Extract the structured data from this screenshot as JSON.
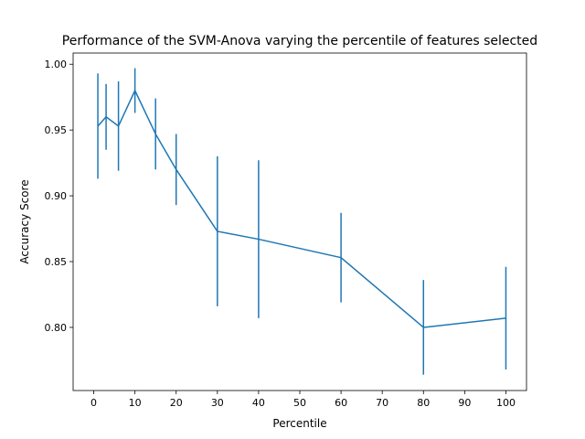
{
  "chart_data": {
    "type": "line",
    "title": "Performance of the SVM-Anova varying the percentile of features selected",
    "xlabel": "Percentile",
    "ylabel": "Accuracy Score",
    "xlim": [
      -5,
      105
    ],
    "ylim": [
      0.752,
      1.0085
    ],
    "xticks": [
      0,
      10,
      20,
      30,
      40,
      50,
      60,
      70,
      80,
      90,
      100
    ],
    "yticks": [
      0.8,
      0.85,
      0.9,
      0.95,
      1.0
    ],
    "ytick_labels": [
      "0.80",
      "0.85",
      "0.90",
      "0.95",
      "1.00"
    ],
    "grid": false,
    "legend": "none",
    "series": [
      {
        "color": "#1f77b4",
        "x": [
          1,
          3,
          6,
          10,
          15,
          20,
          30,
          40,
          60,
          80,
          100
        ],
        "y": [
          0.953,
          0.96,
          0.953,
          0.98,
          0.947,
          0.92,
          0.873,
          0.867,
          0.853,
          0.8,
          0.807
        ],
        "yerr": [
          0.04,
          0.025,
          0.034,
          0.017,
          0.027,
          0.027,
          0.057,
          0.06,
          0.034,
          0.036,
          0.039
        ]
      }
    ]
  }
}
